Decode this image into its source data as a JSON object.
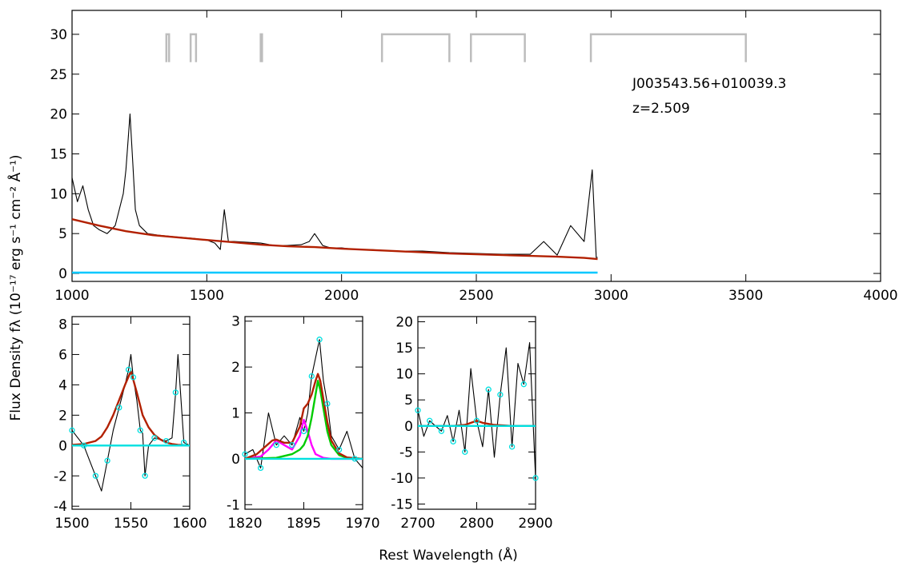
{
  "chart_data": [
    {
      "id": "main",
      "type": "line",
      "annotations": [
        "J003543.56+010039.3",
        "z=2.509"
      ],
      "xlim": [
        1000,
        4000
      ],
      "ylim": [
        -1,
        33
      ],
      "xticks": [
        1000,
        1500,
        2000,
        2500,
        3000,
        3500,
        4000
      ],
      "yticks": [
        0,
        5,
        10,
        15,
        20,
        25,
        30
      ],
      "fitting_windows": [
        [
          1350,
          1360
        ],
        [
          1440,
          1460
        ],
        [
          1700,
          1705
        ],
        [
          2150,
          2400
        ],
        [
          2480,
          2680
        ],
        [
          2925,
          3500
        ]
      ],
      "series": [
        {
          "color": "#000000",
          "x": [
            1000,
            1020,
            1040,
            1060,
            1080,
            1100,
            1130,
            1160,
            1190,
            1200,
            1215,
            1225,
            1235,
            1250,
            1280,
            1320,
            1380,
            1450,
            1500,
            1530,
            1550,
            1565,
            1580,
            1600,
            1650,
            1700,
            1750,
            1800,
            1850,
            1880,
            1900,
            1910,
            1930,
            1960,
            2000,
            2050,
            2100,
            2200,
            2300,
            2400,
            2500,
            2600,
            2700,
            2750,
            2800,
            2850,
            2900,
            2930,
            2945,
            2950
          ],
          "y": [
            12,
            9,
            11,
            8,
            6,
            5.5,
            5,
            6,
            10,
            13,
            20,
            14,
            8,
            6,
            5,
            4.8,
            4.6,
            4.4,
            4.2,
            3.8,
            3,
            8,
            4,
            4,
            3.9,
            3.8,
            3.5,
            3.5,
            3.6,
            4,
            5,
            4.5,
            3.5,
            3.2,
            3.2,
            3,
            3,
            2.8,
            2.8,
            2.6,
            2.5,
            2.4,
            2.4,
            4,
            2.3,
            6,
            4,
            13,
            2,
            2
          ]
        },
        {
          "color": "#b22000",
          "x": [
            1000,
            1100,
            1200,
            1300,
            1400,
            1500,
            1600,
            1700,
            1800,
            1900,
            2000,
            2100,
            2200,
            2300,
            2400,
            2500,
            2600,
            2700,
            2800,
            2900,
            2950
          ],
          "y": [
            6.8,
            6,
            5.3,
            4.8,
            4.5,
            4.2,
            3.9,
            3.6,
            3.4,
            3.3,
            3.1,
            2.95,
            2.8,
            2.65,
            2.5,
            2.4,
            2.3,
            2.2,
            2.1,
            1.95,
            1.8
          ]
        },
        {
          "color": "#00c8ff",
          "x": [
            1000,
            2950
          ],
          "y": [
            0.1,
            0.1
          ]
        }
      ]
    },
    {
      "id": "civ",
      "type": "line",
      "xlim": [
        1500,
        1600
      ],
      "ylim": [
        -4.2,
        8.5
      ],
      "xticks": [
        1500,
        1550,
        1600
      ],
      "yticks": [
        -4,
        -2,
        0,
        2,
        4,
        6,
        8
      ],
      "series": [
        {
          "color": "#000000",
          "x": [
            1500,
            1505,
            1510,
            1515,
            1520,
            1525,
            1530,
            1535,
            1540,
            1545,
            1548,
            1550,
            1552,
            1555,
            1558,
            1560,
            1562,
            1565,
            1570,
            1575,
            1580,
            1585,
            1588,
            1590,
            1595,
            1600
          ],
          "y": [
            1,
            0.5,
            0,
            -1,
            -2,
            -3,
            -1,
            1,
            2.5,
            4,
            5,
            6,
            4.5,
            3,
            1,
            0.8,
            -2,
            0,
            0.5,
            0.4,
            0.3,
            0.5,
            3.5,
            6,
            0.2,
            0
          ]
        },
        {
          "color": "#b22000",
          "x": [
            1500,
            1510,
            1520,
            1525,
            1530,
            1535,
            1540,
            1545,
            1550,
            1555,
            1560,
            1565,
            1570,
            1575,
            1580,
            1585,
            1590,
            1600
          ],
          "y": [
            0.05,
            0.1,
            0.3,
            0.6,
            1.2,
            2,
            3,
            4,
            4.9,
            3.5,
            2,
            1.2,
            0.7,
            0.4,
            0.2,
            0.1,
            0.05,
            0
          ]
        },
        {
          "color": "#00e0e0",
          "x": [
            1500,
            1600
          ],
          "y": [
            0,
            0
          ]
        }
      ]
    },
    {
      "id": "ciii",
      "type": "line",
      "xlim": [
        1820,
        1970
      ],
      "ylim": [
        -1.1,
        3.1
      ],
      "xticks": [
        1820,
        1895,
        1970
      ],
      "yticks": [
        -1,
        0,
        1,
        2,
        3
      ],
      "series": [
        {
          "color": "#000000",
          "x": [
            1820,
            1830,
            1840,
            1850,
            1860,
            1870,
            1880,
            1890,
            1895,
            1900,
            1905,
            1910,
            1915,
            1920,
            1925,
            1930,
            1940,
            1950,
            1960,
            1970
          ],
          "y": [
            0.1,
            0.2,
            -0.2,
            1,
            0.3,
            0.5,
            0.3,
            0.9,
            0.6,
            1,
            1.8,
            2.2,
            2.6,
            1.7,
            1.2,
            0.5,
            0.2,
            0.6,
            0,
            -0.2
          ]
        },
        {
          "color": "#ff00ff",
          "x": [
            1820,
            1840,
            1850,
            1860,
            1870,
            1880,
            1890,
            1895,
            1900,
            1905,
            1910,
            1920,
            1930,
            1950,
            1970
          ],
          "y": [
            0,
            0.05,
            0.2,
            0.4,
            0.3,
            0.2,
            0.5,
            0.85,
            0.6,
            0.3,
            0.1,
            0.02,
            0,
            0,
            0
          ]
        },
        {
          "color": "#00cc00",
          "x": [
            1820,
            1860,
            1880,
            1890,
            1895,
            1900,
            1905,
            1910,
            1913,
            1916,
            1920,
            1925,
            1930,
            1940,
            1950,
            1970
          ],
          "y": [
            0,
            0.02,
            0.1,
            0.2,
            0.3,
            0.5,
            0.9,
            1.4,
            1.7,
            1.5,
            1.1,
            0.6,
            0.3,
            0.08,
            0.02,
            0
          ]
        },
        {
          "color": "#b22000",
          "x": [
            1820,
            1835,
            1845,
            1855,
            1860,
            1870,
            1880,
            1890,
            1895,
            1900,
            1905,
            1910,
            1913,
            1916,
            1920,
            1925,
            1930,
            1940,
            1950,
            1970
          ],
          "y": [
            0,
            0.1,
            0.25,
            0.4,
            0.42,
            0.35,
            0.35,
            0.7,
            1.1,
            1.2,
            1.4,
            1.7,
            1.85,
            1.7,
            1.3,
            0.8,
            0.4,
            0.12,
            0.03,
            0
          ]
        },
        {
          "color": "#00e0e0",
          "x": [
            1820,
            1970
          ],
          "y": [
            0,
            0
          ]
        }
      ]
    },
    {
      "id": "mgii",
      "type": "line",
      "xlim": [
        2700,
        2900
      ],
      "ylim": [
        -16,
        21
      ],
      "xticks": [
        2700,
        2800,
        2900
      ],
      "yticks": [
        -15,
        -10,
        -5,
        0,
        5,
        10,
        15,
        20
      ],
      "series": [
        {
          "color": "#000000",
          "x": [
            2700,
            2710,
            2720,
            2730,
            2740,
            2750,
            2760,
            2770,
            2780,
            2790,
            2800,
            2810,
            2820,
            2830,
            2840,
            2850,
            2860,
            2870,
            2880,
            2890,
            2900
          ],
          "y": [
            3,
            -2,
            1,
            0,
            -1,
            2,
            -3,
            3,
            -5,
            11,
            1,
            -4,
            7,
            -6,
            6,
            15,
            -4,
            12,
            8,
            16,
            -10
          ]
        },
        {
          "color": "#b22000",
          "x": [
            2700,
            2760,
            2780,
            2795,
            2800,
            2810,
            2830,
            2860,
            2900
          ],
          "y": [
            0,
            0,
            0.2,
            0.8,
            1,
            0.6,
            0.2,
            0,
            0
          ]
        },
        {
          "color": "#00e0e0",
          "x": [
            2700,
            2900
          ],
          "y": [
            0,
            0
          ]
        }
      ]
    }
  ],
  "labels": {
    "ylabel": "Flux Density fλ (10⁻¹⁷ erg s⁻¹ cm⁻² Å⁻¹)",
    "xlabel": "Rest Wavelength (Å)"
  },
  "colors": {
    "spectrum": "#000000",
    "fit": "#b22000",
    "zero_line": "#00c8ff",
    "window": "#bdbdbd",
    "masked_points": "#00e0e0",
    "component_narrow": "#ff00ff",
    "component_broad": "#00cc00"
  }
}
